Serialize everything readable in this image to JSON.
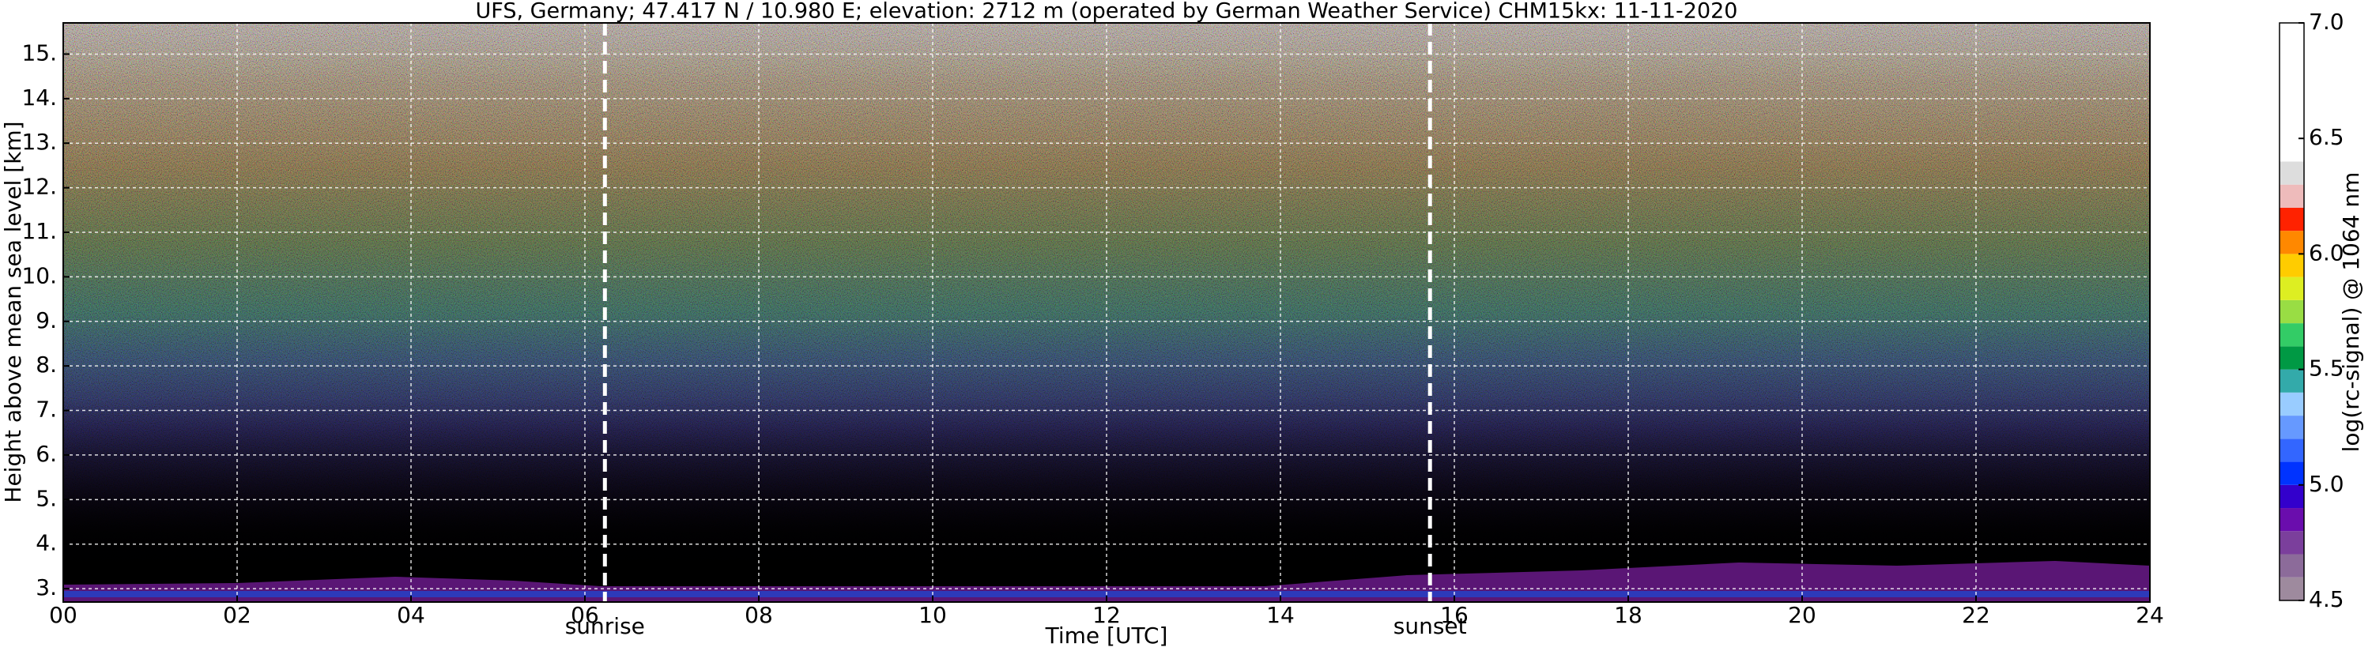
{
  "chart_data": {
    "type": "heatmap",
    "title": "UFS, Germany; 47.417 N / 10.980 E; elevation: 2712 m  (operated by German Weather Service)    CHM15kx: 11-11-2020",
    "xlabel": "Time [UTC]",
    "ylabel": "Height above mean sea level [km]",
    "xlim": [
      0,
      24
    ],
    "ylim": [
      2.7,
      15.7
    ],
    "xticks": [
      {
        "value": 0,
        "label": "00"
      },
      {
        "value": 2,
        "label": "02"
      },
      {
        "value": 4,
        "label": "04"
      },
      {
        "value": 6,
        "label": "06"
      },
      {
        "value": 8,
        "label": "08"
      },
      {
        "value": 10,
        "label": "10"
      },
      {
        "value": 12,
        "label": "12"
      },
      {
        "value": 14,
        "label": "14"
      },
      {
        "value": 16,
        "label": "16"
      },
      {
        "value": 18,
        "label": "18"
      },
      {
        "value": 20,
        "label": "20"
      },
      {
        "value": 22,
        "label": "22"
      },
      {
        "value": 24,
        "label": "24"
      }
    ],
    "yticks": [
      {
        "value": 3,
        "label": "3."
      },
      {
        "value": 4,
        "label": "4."
      },
      {
        "value": 5,
        "label": "5."
      },
      {
        "value": 6,
        "label": "6."
      },
      {
        "value": 7,
        "label": "7."
      },
      {
        "value": 8,
        "label": "8."
      },
      {
        "value": 9,
        "label": "9."
      },
      {
        "value": 10,
        "label": "10."
      },
      {
        "value": 11,
        "label": "11."
      },
      {
        "value": 12,
        "label": "12."
      },
      {
        "value": 13,
        "label": "13."
      },
      {
        "value": 14,
        "label": "14."
      },
      {
        "value": 15,
        "label": "15."
      }
    ],
    "grid": true,
    "annotations": [
      {
        "text": "sunrise",
        "x": 6.23
      },
      {
        "text": "sunset",
        "x": 15.72
      }
    ],
    "colorbar": {
      "label": "log(rc-signal) @ 1064 nm",
      "lim": [
        4.5,
        7.0
      ],
      "ticks": [
        4.5,
        {
          "value": 5,
          "label": "5.0"
        },
        5.5,
        {
          "value": 6,
          "label": "6.0"
        },
        6.5,
        {
          "value": 7,
          "label": "7.0"
        }
      ],
      "bounds": [
        4.5,
        4.6,
        4.7,
        4.8,
        4.9,
        5.0,
        5.1,
        5.2,
        5.3,
        5.4,
        5.5,
        5.6,
        5.7,
        5.8,
        5.9,
        6.0,
        6.1,
        6.2,
        6.3,
        6.4,
        7.0
      ],
      "colors": [
        "#9e8a9e",
        "#8c6b9a",
        "#7b3f9c",
        "#6a0dad",
        "#3300cc",
        "#0033ff",
        "#3366ff",
        "#6699ff",
        "#99ccff",
        "#33aaaa",
        "#009944",
        "#33cc66",
        "#99dd44",
        "#ddee22",
        "#ffcc00",
        "#ff8800",
        "#ff2200",
        "#eebbbb",
        "#dddddd",
        "#ffffff"
      ]
    }
  }
}
